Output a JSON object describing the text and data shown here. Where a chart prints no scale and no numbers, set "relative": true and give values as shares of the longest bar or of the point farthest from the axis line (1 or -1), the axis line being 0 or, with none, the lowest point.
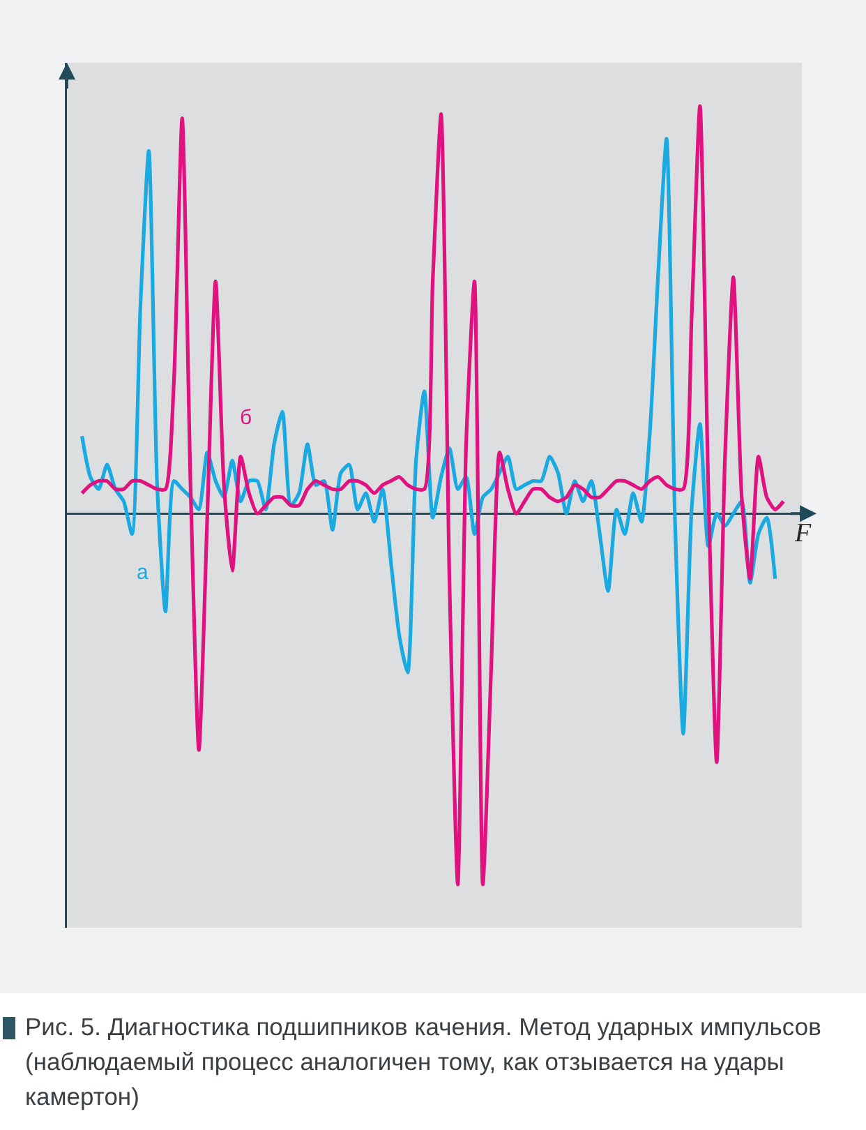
{
  "chart_data": {
    "type": "line",
    "relative": true,
    "xlabel": "F",
    "legend": false,
    "grid": false,
    "categories": [
      null,
      null,
      null,
      null,
      null,
      null,
      null,
      null,
      null,
      null,
      null,
      null,
      null,
      null,
      null,
      null,
      null,
      null,
      null,
      null,
      null,
      null,
      null,
      null,
      null,
      null,
      null,
      null,
      null,
      null,
      null,
      null,
      null,
      null,
      null,
      null,
      null,
      null,
      null,
      null,
      null,
      null,
      null,
      null,
      null,
      null,
      null,
      null,
      null,
      null,
      null,
      null,
      null,
      null,
      null,
      null,
      null,
      null,
      null,
      null,
      null,
      null,
      null,
      null,
      null,
      null,
      null,
      null,
      null,
      null,
      null,
      null,
      null,
      null,
      null,
      null,
      null,
      null,
      null,
      null,
      null,
      null,
      null,
      null,
      null
    ],
    "series": [
      {
        "name": "а",
        "color": "#1aa9e0",
        "values": [
          0.19,
          0.09,
          0.06,
          0.12,
          0.06,
          0.03,
          -0.05,
          0.51,
          0.89,
          0.07,
          -0.24,
          0.08,
          0.06,
          0.04,
          0.01,
          0.15,
          0.08,
          0.04,
          0.13,
          0.03,
          0.08,
          0.08,
          0.01,
          0.17,
          0.25,
          0.02,
          0.05,
          0.17,
          0.07,
          0.08,
          -0.04,
          0.1,
          0.12,
          0.01,
          0.05,
          -0.02,
          0.06,
          -0.12,
          -0.3,
          -0.39,
          0.13,
          0.3,
          -0.01,
          0.09,
          0.16,
          0.06,
          0.09,
          -0.05,
          0.04,
          0.06,
          0.1,
          0.14,
          0.06,
          0.07,
          0.08,
          0.08,
          0.14,
          0.1,
          0.0,
          0.08,
          0.03,
          0.08,
          -0.05,
          -0.19,
          0.01,
          -0.05,
          0.05,
          -0.02,
          0.2,
          0.59,
          0.92,
          -0.01,
          -0.54,
          0.01,
          0.22,
          -0.08,
          0.0,
          -0.03,
          0.0,
          0.03,
          -0.17,
          -0.05,
          -0.01,
          -0.16,
          null
        ]
      },
      {
        "name": "б",
        "color": "#e0127f",
        "values": [
          0.05,
          0.07,
          0.08,
          0.08,
          0.06,
          0.06,
          0.08,
          0.08,
          0.07,
          0.06,
          0.06,
          0.32,
          0.97,
          0.07,
          -0.58,
          -0.01,
          0.57,
          0.07,
          -0.14,
          0.14,
          0.05,
          0.0,
          0.02,
          0.04,
          0.04,
          0.02,
          0.02,
          0.06,
          0.08,
          0.07,
          0.06,
          0.06,
          0.08,
          0.08,
          0.07,
          0.05,
          0.07,
          0.08,
          0.09,
          0.07,
          0.06,
          0.06,
          0.57,
          0.98,
          -0.16,
          -0.91,
          0.17,
          0.57,
          -0.91,
          -0.38,
          0.15,
          0.06,
          0.0,
          0.03,
          0.06,
          0.06,
          0.04,
          0.03,
          0.04,
          0.07,
          0.06,
          0.04,
          0.04,
          0.06,
          0.08,
          0.08,
          0.07,
          0.06,
          0.08,
          0.09,
          0.07,
          0.06,
          0.06,
          0.48,
          1.0,
          0.06,
          -0.61,
          0.14,
          0.58,
          0.04,
          -0.16,
          0.14,
          0.04,
          0.01,
          0.03
        ]
      }
    ],
    "annotations": [
      "Рис. 5. Диагностика подшипников качения. Метод ударных импульсов (наблюдаемый процесс аналогичен тому, как отзывается на удары камертон)"
    ]
  }
}
